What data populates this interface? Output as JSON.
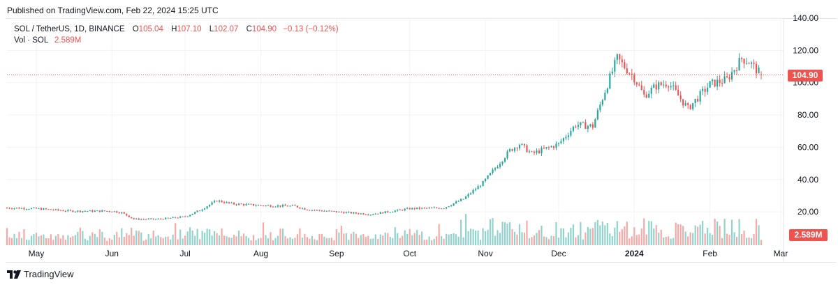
{
  "header": {
    "published_text": "Published on TradingView.com, Feb 22, 2024 15:25 UTC"
  },
  "legend": {
    "symbol_line": "SOL / TetherUS, 1D, BINANCE",
    "open_label": "O",
    "open_value": "105.04",
    "high_label": "H",
    "high_value": "107.10",
    "low_label": "L",
    "low_value": "102.07",
    "close_label": "C",
    "close_value": "104.90",
    "change": "−0.13 (−0.12%)",
    "vol_label": "Vol · SOL",
    "vol_value": "2.589M"
  },
  "price_tag": "104.90",
  "volume_tag": "2.589M",
  "footer": {
    "brand": "TradingView"
  },
  "colors": {
    "up": "#26a69a",
    "down": "#ef5350",
    "volume_up": "#8fd3cc",
    "volume_down": "#f5a8a6",
    "grid": "#f0f3fa",
    "axis_text": "#131722",
    "last_price_line": "#ef5350"
  },
  "chart_data": {
    "type": "candlestick",
    "title": "SOL / TetherUS, 1D, BINANCE",
    "y_axis": {
      "ticks": [
        "140.00",
        "120.00",
        "100.00",
        "80.00",
        "60.00",
        "40.00",
        "20.00"
      ],
      "range": [
        0,
        140
      ]
    },
    "x_axis": {
      "ticks": [
        "May",
        "Jun",
        "Jul",
        "Aug",
        "Sep",
        "Oct",
        "Nov",
        "Dec",
        "2024",
        "Feb",
        "Mar"
      ],
      "range": [
        "2023-04-19",
        "2024-03-01"
      ]
    },
    "last_close": 104.9,
    "grid": true,
    "price_series": {
      "name": "SOL/USDT daily close (approx.)",
      "anchors": [
        [
          "2023-04-19",
          22.5
        ],
        [
          "2023-05-01",
          22.0
        ],
        [
          "2023-05-15",
          20.5
        ],
        [
          "2023-06-01",
          20.5
        ],
        [
          "2023-06-05",
          19.5
        ],
        [
          "2023-06-10",
          15.5
        ],
        [
          "2023-06-20",
          15.5
        ],
        [
          "2023-07-01",
          17.0
        ],
        [
          "2023-07-07",
          21.0
        ],
        [
          "2023-07-14",
          27.0
        ],
        [
          "2023-07-20",
          25.0
        ],
        [
          "2023-08-01",
          24.0
        ],
        [
          "2023-08-15",
          23.5
        ],
        [
          "2023-08-20",
          21.5
        ],
        [
          "2023-09-01",
          20.0
        ],
        [
          "2023-09-15",
          18.5
        ],
        [
          "2023-10-01",
          22.0
        ],
        [
          "2023-10-15",
          22.5
        ],
        [
          "2023-10-23",
          28.0
        ],
        [
          "2023-10-31",
          38.0
        ],
        [
          "2023-11-11",
          58.0
        ],
        [
          "2023-11-15",
          62.0
        ],
        [
          "2023-11-20",
          56.0
        ],
        [
          "2023-12-01",
          62.0
        ],
        [
          "2023-12-08",
          74.0
        ],
        [
          "2023-12-15",
          73.0
        ],
        [
          "2023-12-20",
          95.0
        ],
        [
          "2023-12-25",
          115.0
        ],
        [
          "2024-01-01",
          103.0
        ],
        [
          "2024-01-05",
          92.0
        ],
        [
          "2024-01-10",
          98.0
        ],
        [
          "2024-01-15",
          100.0
        ],
        [
          "2024-01-23",
          84.0
        ],
        [
          "2024-02-01",
          99.0
        ],
        [
          "2024-02-08",
          102.0
        ],
        [
          "2024-02-14",
          115.0
        ],
        [
          "2024-02-17",
          113.0
        ],
        [
          "2024-02-22",
          104.9
        ]
      ]
    }
  }
}
